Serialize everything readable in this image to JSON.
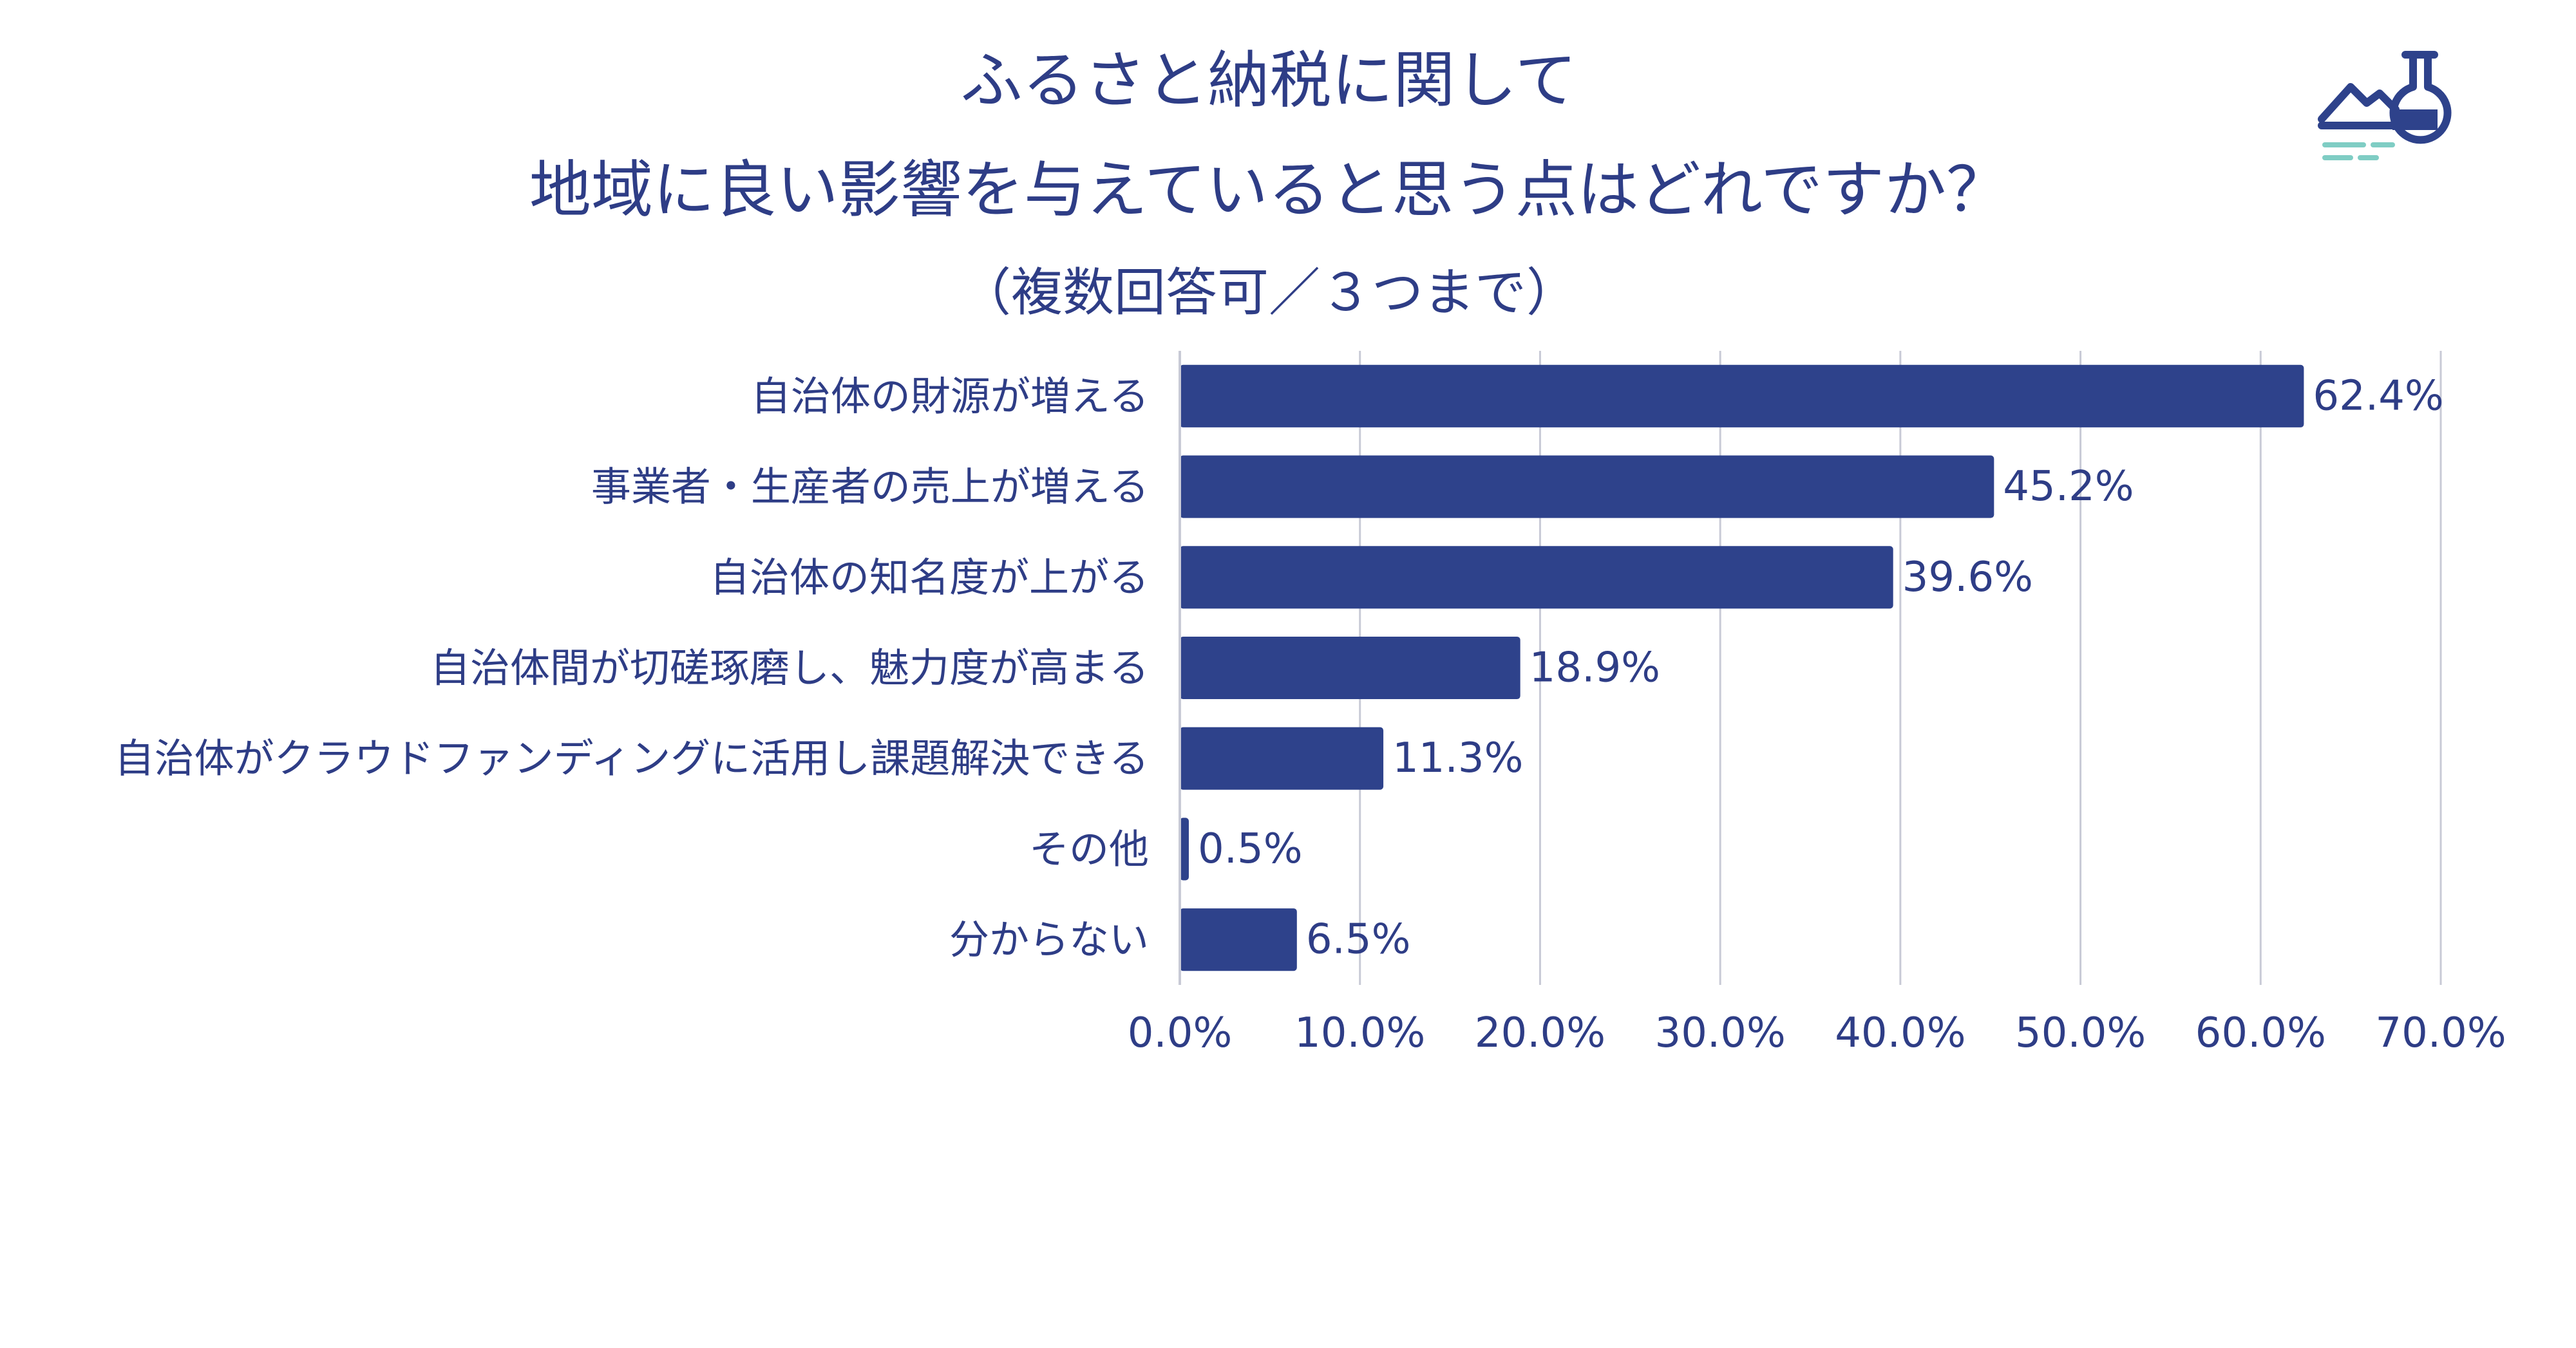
{
  "colors": {
    "bar": "#2e428b",
    "text": "#2e3d86",
    "grid": "#c8cad6",
    "logo": "#2e428b",
    "logo_accent": "#7fcdc4"
  },
  "logo_icon": "factory-flask-icon",
  "chart_data": {
    "type": "bar",
    "orientation": "horizontal",
    "title_lines": [
      "ふるさと納税に関して",
      "地域に良い影響を与えていると思う点はどれですか？"
    ],
    "subtitle": "（複数回答可／３つまで）",
    "categories": [
      "自治体の財源が増える",
      "事業者・生産者の売上が増える",
      "自治体の知名度が上がる",
      "自治体間が切磋琢磨し、魅力度が高まる",
      "自治体がクラウドファンディングに活用し課題解決できる",
      "その他",
      "分からない"
    ],
    "values": [
      62.4,
      45.2,
      39.6,
      18.9,
      11.3,
      0.5,
      6.5
    ],
    "value_labels": [
      "62.4%",
      "45.2%",
      "39.6%",
      "18.9%",
      "11.3%",
      "0.5%",
      "6.5%"
    ],
    "xlim": [
      0,
      70
    ],
    "x_ticks": [
      0,
      10,
      20,
      30,
      40,
      50,
      60,
      70
    ],
    "x_tick_labels": [
      "0.0%",
      "10.0%",
      "20.0%",
      "30.0%",
      "40.0%",
      "50.0%",
      "60.0%",
      "70.0%"
    ],
    "grid": true,
    "legend": "none"
  }
}
